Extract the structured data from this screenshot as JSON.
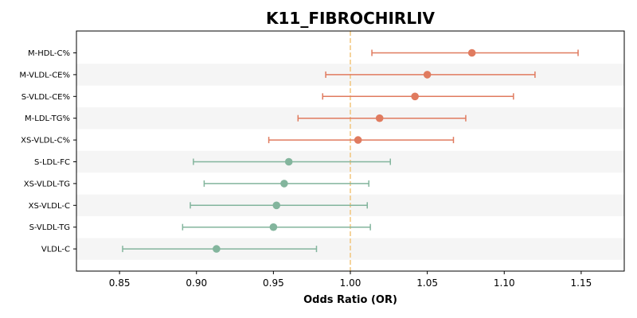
{
  "chart_data": {
    "type": "forest",
    "title": "K11_FIBROCHIRLIV",
    "xlabel": "Odds Ratio (OR)",
    "ylabel": "",
    "xlim": [
      0.822,
      1.178
    ],
    "xticks": [
      0.85,
      0.9,
      0.95,
      1.0,
      1.05,
      1.1,
      1.15
    ],
    "xtick_labels": [
      "0.85",
      "0.90",
      "0.95",
      "1.00",
      "1.05",
      "1.10",
      "1.15"
    ],
    "reference_line": 1.0,
    "grid": false,
    "alternating_row_bands": true,
    "colors": {
      "positive": "#e07b5f",
      "negative": "#83b59d",
      "reference": "#f2c57c",
      "band": "#f5f5f5"
    },
    "rows": [
      {
        "label": "M-HDL-C%",
        "or": 1.079,
        "ci_low": 1.014,
        "ci_high": 1.148,
        "direction": "positive"
      },
      {
        "label": "M-VLDL-CE%",
        "or": 1.05,
        "ci_low": 0.984,
        "ci_high": 1.12,
        "direction": "positive"
      },
      {
        "label": "S-VLDL-CE%",
        "or": 1.042,
        "ci_low": 0.982,
        "ci_high": 1.106,
        "direction": "positive"
      },
      {
        "label": "M-LDL-TG%",
        "or": 1.019,
        "ci_low": 0.966,
        "ci_high": 1.075,
        "direction": "positive"
      },
      {
        "label": "XS-VLDL-C%",
        "or": 1.005,
        "ci_low": 0.947,
        "ci_high": 1.067,
        "direction": "positive"
      },
      {
        "label": "S-LDL-FC",
        "or": 0.96,
        "ci_low": 0.898,
        "ci_high": 1.026,
        "direction": "negative"
      },
      {
        "label": "XS-VLDL-TG",
        "or": 0.957,
        "ci_low": 0.905,
        "ci_high": 1.012,
        "direction": "negative"
      },
      {
        "label": "XS-VLDL-C",
        "or": 0.952,
        "ci_low": 0.896,
        "ci_high": 1.011,
        "direction": "negative"
      },
      {
        "label": "S-VLDL-TG",
        "or": 0.95,
        "ci_low": 0.891,
        "ci_high": 1.013,
        "direction": "negative"
      },
      {
        "label": "VLDL-C",
        "or": 0.913,
        "ci_low": 0.852,
        "ci_high": 0.978,
        "direction": "negative"
      }
    ]
  }
}
